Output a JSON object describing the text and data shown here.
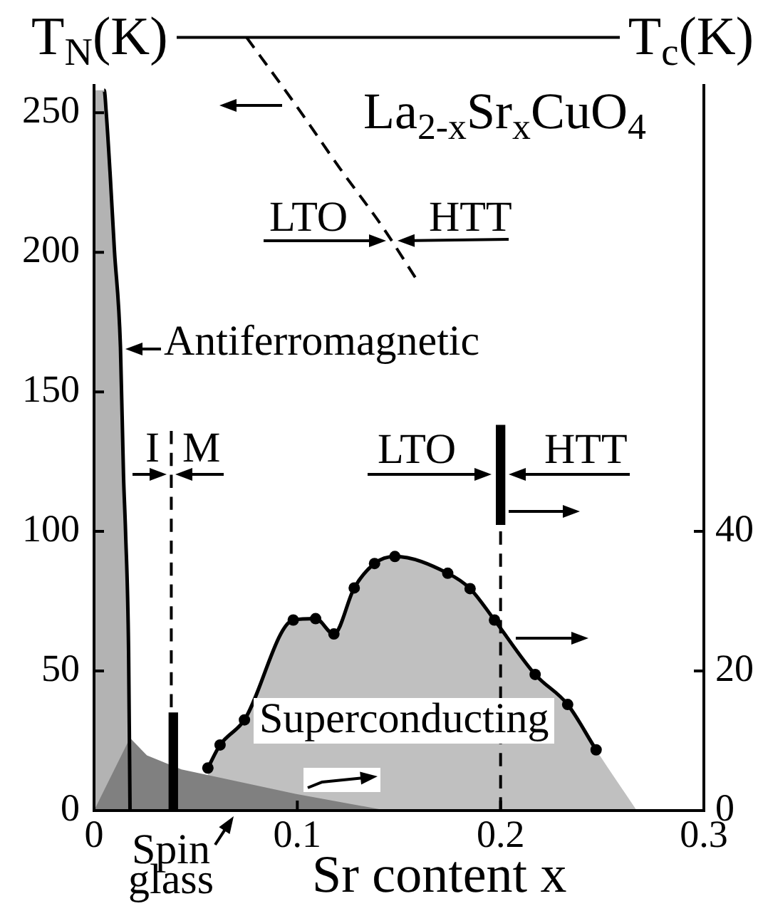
{
  "chart_data": {
    "type": "line",
    "title": "La$_{2-x}$Sr$_{x}$CuO$_{4}$",
    "xlabel": "Sr content x",
    "ylabel": "T$_{N}$(K)",
    "y2label": "T$_{c}$(K)",
    "xlim": [
      0,
      0.3
    ],
    "xticks": [
      0,
      0.1,
      0.2,
      0.3
    ],
    "ylim": [
      0,
      277
    ],
    "yticks": [
      0,
      50,
      100,
      150,
      200,
      250
    ],
    "y2lim": [
      0,
      110.8
    ],
    "y2ticks": [
      0,
      20,
      40
    ],
    "series": [
      {
        "type": "bar",
        "color": "#000000",
        "x": [
          0.039
        ],
        "base": [
          0
        ],
        "values": [
          35
        ]
      },
      {
        "type": "bar",
        "color": "#000000",
        "axis": "y2",
        "x": [
          0.2
        ],
        "base": [
          41
        ],
        "values": [
          14.2
        ]
      },
      {
        "color": "#000000",
        "line_style": "dashed",
        "x": [
          0.2,
          0.2
        ],
        "values": [
          0,
          100
        ]
      },
      {
        "color": "#000000",
        "line_style": "dashed",
        "x": [
          0.038,
          0.038
        ],
        "values": [
          37,
          136
        ]
      },
      {
        "color": "#000000",
        "line_style": "dashed",
        "x": [
          0.075,
          0.099,
          0.121,
          0.142,
          0.158
        ],
        "values": [
          277,
          253,
          230,
          209,
          191
        ]
      },
      {
        "type": "area",
        "color": "#808080",
        "axis": "y2",
        "x": [
          0,
          0.0177,
          0.026,
          0.043,
          0.059,
          0.099,
          0.144
        ],
        "values": [
          0,
          10.4,
          7.9,
          5.9,
          4.9,
          2.4,
          0
        ]
      },
      {
        "type": "area",
        "color": "#b3b3b3",
        "line_style": "solid",
        "x": [
          0,
          0.005,
          0.006,
          0.008,
          0.01,
          0.013,
          0.0145,
          0.0155,
          0.017,
          0.0177
        ],
        "values": [
          258,
          258,
          250,
          227,
          201,
          166,
          120,
          100,
          57,
          0
        ]
      },
      {
        "type": "area",
        "color": "#c0c0c0",
        "line_style": "solid",
        "marker": "circle",
        "axis": "y2",
        "x": [
          0.056,
          0.062,
          0.074,
          0.098,
          0.109,
          0.118,
          0.128,
          0.138,
          0.148,
          0.174,
          0.185,
          0.197,
          0.217,
          0.233,
          0.247,
          0.267
        ],
        "values": [
          6.1,
          9.4,
          13.0,
          27.3,
          27.5,
          25.3,
          31.9,
          35.4,
          36.4,
          34.0,
          31.8,
          27.3,
          19.5,
          15.2,
          8.7,
          0
        ]
      }
    ],
    "annotations": [
      "Antiferromagnetic",
      "Superconducting",
      "Spin glass",
      "LTO",
      "HTT",
      "I",
      "M",
      "LTO",
      "HTT"
    ]
  }
}
